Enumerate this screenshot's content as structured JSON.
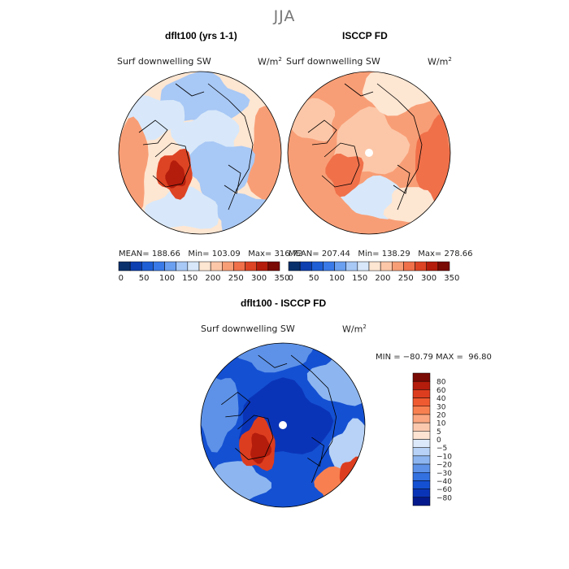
{
  "page": {
    "title": "JJA"
  },
  "panels": [
    {
      "id": "model",
      "title": "dflt100 (yrs 1-1)",
      "field_label": "Surf downwelling SW",
      "units": "W/m",
      "units_exp": "2",
      "stats": {
        "mean_label": "MEAN=",
        "mean": "188.66",
        "min_label": "Min=",
        "min": "103.09",
        "max_label": "Max=",
        "max": "316.72"
      }
    },
    {
      "id": "obs",
      "title": "ISCCP FD",
      "field_label": "Surf downwelling SW",
      "units": "W/m",
      "units_exp": "2",
      "stats": {
        "mean_label": "MEAN=",
        "mean": "207.44",
        "min_label": "Min=",
        "min": "138.29",
        "max_label": "Max=",
        "max": "278.66"
      }
    },
    {
      "id": "diff",
      "title": "dflt100 - ISCCP FD",
      "field_label": "Surf downwelling SW",
      "units": "W/m",
      "units_exp": "2",
      "stats_text": "MIN = −80.79 MAX =  96.80"
    }
  ],
  "colors": {
    "abs_bins": [
      "#08306b",
      "#0d3fb0",
      "#1f5fd6",
      "#3a7ae8",
      "#6b9ff0",
      "#a8c8f5",
      "#d8e8fa",
      "#fde6d2",
      "#fcc7a8",
      "#f89e76",
      "#f0704a",
      "#dd4424",
      "#b41c0c",
      "#7a0a04"
    ],
    "diff_bins": [
      "#7a0a04",
      "#b41c0c",
      "#dd3d1f",
      "#ef5a31",
      "#f88050",
      "#fba680",
      "#fcc8ad",
      "#fde4d2",
      "#dce9fa",
      "#b7d2f6",
      "#8db6f0",
      "#5e92e8",
      "#3370e0",
      "#1450d2",
      "#0a34b8",
      "#041a8c"
    ],
    "coast": "#000000"
  },
  "chart_data": [
    {
      "type": "heatmap",
      "title": "dflt100 (yrs 1-1)",
      "variable": "Surf downwelling SW",
      "units": "W/m^2",
      "projection": "polar stereographic (north)",
      "colorbar": {
        "ticks": [
          "0",
          "50",
          "100",
          "150",
          "200",
          "250",
          "300",
          "350"
        ],
        "range": [
          0,
          350
        ],
        "orientation": "horizontal"
      },
      "stats": {
        "mean": 188.66,
        "min": 103.09,
        "max": 316.72
      }
    },
    {
      "type": "heatmap",
      "title": "ISCCP FD",
      "variable": "Surf downwelling SW",
      "units": "W/m^2",
      "projection": "polar stereographic (north)",
      "colorbar": {
        "ticks": [
          "0",
          "50",
          "100",
          "150",
          "200",
          "250",
          "300",
          "350"
        ],
        "range": [
          0,
          350
        ],
        "orientation": "horizontal"
      },
      "stats": {
        "mean": 207.44,
        "min": 138.29,
        "max": 278.66
      }
    },
    {
      "type": "heatmap",
      "title": "dflt100 - ISCCP FD",
      "variable": "Surf downwelling SW",
      "units": "W/m^2",
      "projection": "polar stereographic (north)",
      "colorbar": {
        "ticks": [
          "80",
          "60",
          "40",
          "30",
          "20",
          "10",
          "5",
          "0",
          "−5",
          "−10",
          "−20",
          "−30",
          "−40",
          "−60",
          "−80"
        ],
        "orientation": "vertical"
      },
      "stats": {
        "min": -80.79,
        "max": 96.8
      }
    }
  ]
}
